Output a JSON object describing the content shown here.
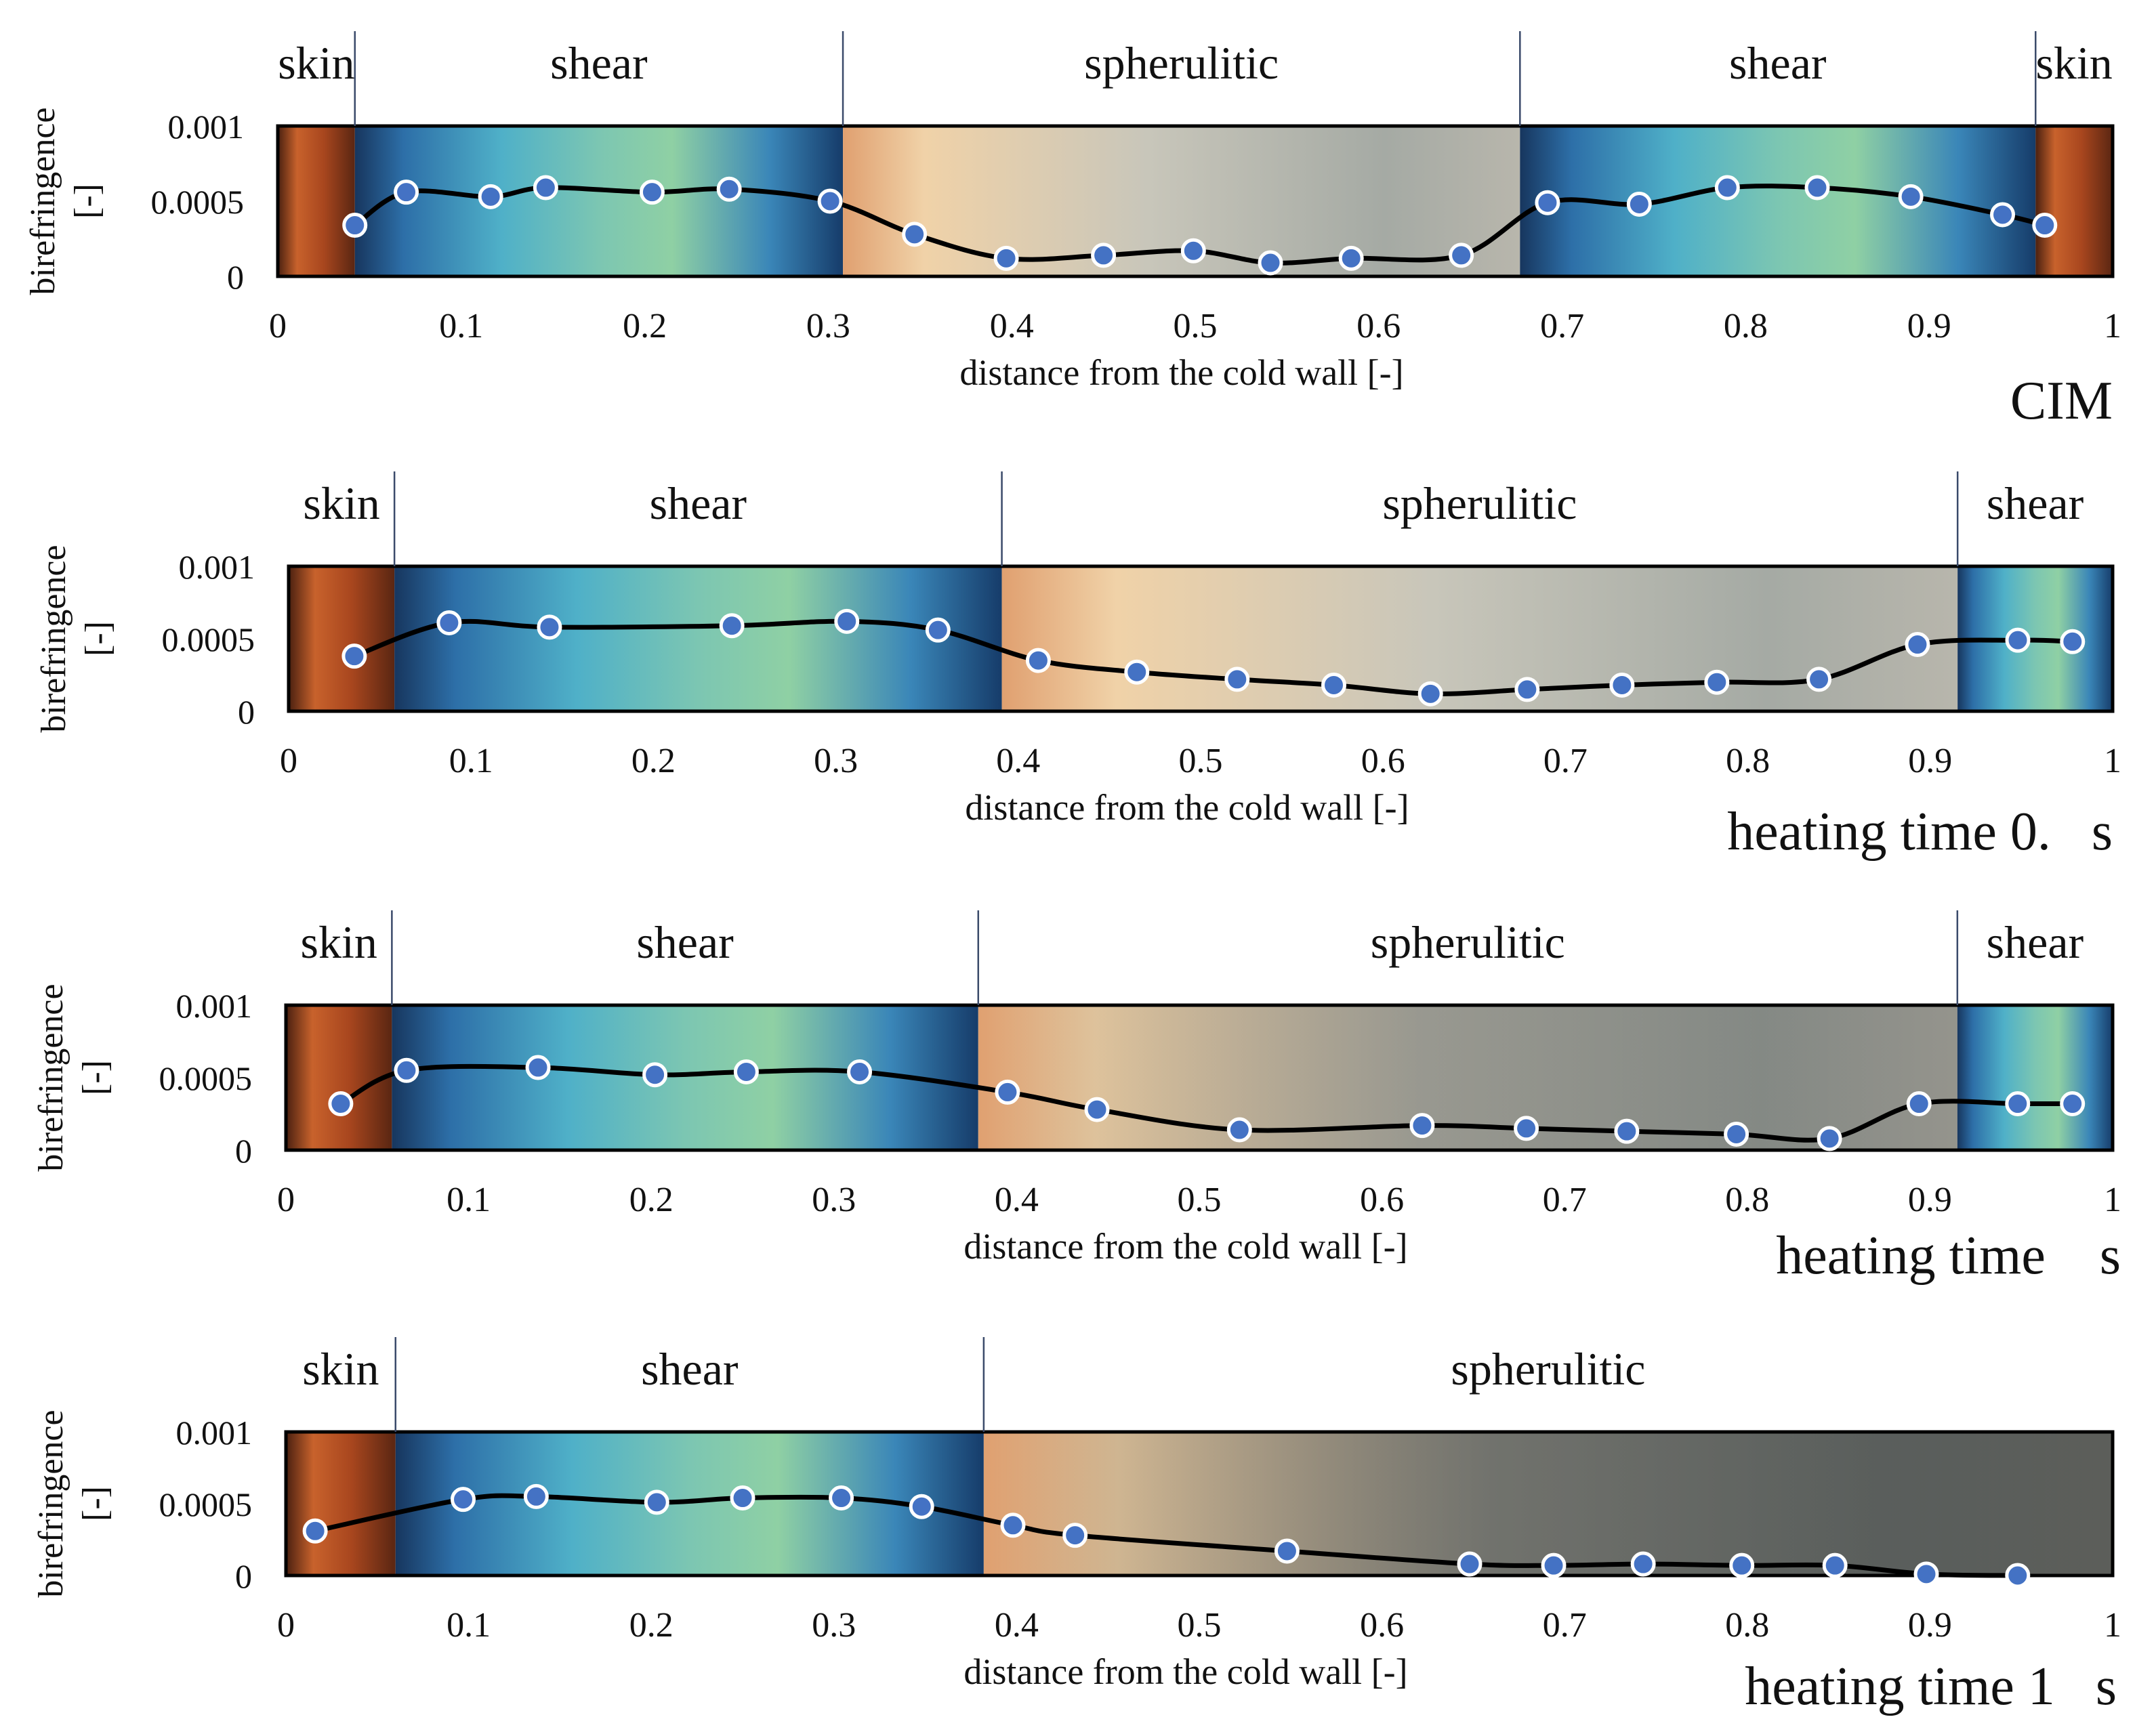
{
  "common": {
    "ylabel": [
      "birefringence",
      "[-]"
    ],
    "xlabel": "distance from the cold wall [-]",
    "x_ticks": [
      "0",
      "0.1",
      "0.2",
      "0.3",
      "0.4",
      "0.5",
      "0.6",
      "0.7",
      "0.8",
      "0.9",
      "1"
    ],
    "y_ticks": [
      "0",
      "0.0005",
      "0.001"
    ],
    "colors": {
      "line": "#000000",
      "marker_fill": "#4472c4",
      "marker_stroke": "#ffffff",
      "skin": "#b8582a",
      "shear": "#4aa6c4",
      "spherulitic": "#c9c4b5"
    }
  },
  "chart_data": [
    {
      "type": "line",
      "title": "CIM",
      "xlabel": "distance from the cold wall [-]",
      "ylabel": "birefringence [-]",
      "xlim": [
        0,
        1
      ],
      "ylim": [
        0,
        0.001
      ],
      "zones": [
        {
          "label": "skin",
          "start": 0,
          "end": 0.042,
          "kind": "skin"
        },
        {
          "label": "shear",
          "start": 0.042,
          "end": 0.308,
          "kind": "shear"
        },
        {
          "label": "spherulitic",
          "start": 0.308,
          "end": 0.677,
          "kind": "spherulitic"
        },
        {
          "label": "shear",
          "start": 0.677,
          "end": 0.958,
          "kind": "shear"
        },
        {
          "label": "skin",
          "start": 0.958,
          "end": 1,
          "kind": "skin"
        }
      ],
      "series": [
        {
          "name": "birefringence",
          "x": [
            0.042,
            0.07,
            0.116,
            0.146,
            0.204,
            0.246,
            0.301,
            0.347,
            0.397,
            0.45,
            0.499,
            0.541,
            0.585,
            0.645,
            0.692,
            0.742,
            0.79,
            0.839,
            0.89,
            0.94,
            0.963
          ],
          "y": [
            0.00034,
            0.00056,
            0.00053,
            0.00059,
            0.00056,
            0.00058,
            0.0005,
            0.00028,
            0.00012,
            0.00014,
            0.00017,
            9e-05,
            0.00012,
            0.00014,
            0.00049,
            0.00048,
            0.00059,
            0.00059,
            0.00053,
            0.00041,
            0.00034
          ]
        }
      ]
    },
    {
      "type": "line",
      "title": "heating time 0.   s",
      "xlabel": "distance from the cold wall [-]",
      "ylabel": "birefringence [-]",
      "xlim": [
        0,
        1
      ],
      "ylim": [
        0,
        0.001
      ],
      "zones": [
        {
          "label": "skin",
          "start": 0,
          "end": 0.058,
          "kind": "skin"
        },
        {
          "label": "shear",
          "start": 0.058,
          "end": 0.391,
          "kind": "shear"
        },
        {
          "label": "spherulitic",
          "start": 0.391,
          "end": 0.915,
          "kind": "spherulitic"
        },
        {
          "label": "shear",
          "start": 0.915,
          "end": 1,
          "kind": "shear"
        }
      ],
      "series": [
        {
          "name": "birefringence",
          "x": [
            0.036,
            0.088,
            0.143,
            0.243,
            0.306,
            0.356,
            0.411,
            0.465,
            0.52,
            0.573,
            0.626,
            0.679,
            0.731,
            0.783,
            0.839,
            0.893,
            0.948,
            0.978
          ],
          "y": [
            0.00038,
            0.00061,
            0.00058,
            0.00059,
            0.00062,
            0.00056,
            0.00035,
            0.00027,
            0.00022,
            0.00018,
            0.00012,
            0.00015,
            0.00018,
            0.0002,
            0.00022,
            0.00046,
            0.00049,
            0.00048
          ]
        }
      ]
    },
    {
      "type": "line",
      "title": "heating time    s",
      "xlabel": "distance from the cold wall [-]",
      "ylabel": "birefringence [-]",
      "xlim": [
        0,
        1
      ],
      "ylim": [
        0,
        0.001
      ],
      "zones": [
        {
          "label": "skin",
          "start": 0,
          "end": 0.058,
          "kind": "skin"
        },
        {
          "label": "shear",
          "start": 0.058,
          "end": 0.379,
          "kind": "shear"
        },
        {
          "label": "spherulitic",
          "start": 0.379,
          "end": 0.915,
          "kind": "spherulitic"
        },
        {
          "label": "shear",
          "start": 0.915,
          "end": 1,
          "kind": "shear"
        }
      ],
      "series": [
        {
          "name": "birefringence",
          "x": [
            0.03,
            0.066,
            0.138,
            0.202,
            0.252,
            0.314,
            0.395,
            0.444,
            0.522,
            0.622,
            0.679,
            0.734,
            0.794,
            0.845,
            0.894,
            0.948,
            0.978
          ],
          "y": [
            0.00032,
            0.00055,
            0.00057,
            0.00052,
            0.00054,
            0.00054,
            0.0004,
            0.00028,
            0.00014,
            0.00017,
            0.00015,
            0.00013,
            0.00011,
            8e-05,
            0.00032,
            0.00032,
            0.00032
          ]
        }
      ]
    },
    {
      "type": "line",
      "title": "heating time 1   s",
      "xlabel": "distance from the cold wall [-]",
      "ylabel": "birefringence [-]",
      "xlim": [
        0,
        1
      ],
      "ylim": [
        0,
        0.001
      ],
      "zones": [
        {
          "label": "skin",
          "start": 0,
          "end": 0.06,
          "kind": "skin"
        },
        {
          "label": "shear",
          "start": 0.06,
          "end": 0.382,
          "kind": "shear"
        },
        {
          "label": "spherulitic",
          "start": 0.382,
          "end": 1,
          "kind": "spherulitic"
        }
      ],
      "series": [
        {
          "name": "birefringence",
          "x": [
            0.016,
            0.097,
            0.137,
            0.203,
            0.25,
            0.304,
            0.348,
            0.398,
            0.432,
            0.548,
            0.648,
            0.694,
            0.743,
            0.797,
            0.848,
            0.898,
            0.948
          ],
          "y": [
            0.00031,
            0.00053,
            0.00055,
            0.00051,
            0.00054,
            0.00054,
            0.00048,
            0.00035,
            0.00028,
            0.00017,
            8e-05,
            7e-05,
            8e-05,
            7e-05,
            7e-05,
            1e-05,
            0.0
          ]
        }
      ]
    }
  ]
}
